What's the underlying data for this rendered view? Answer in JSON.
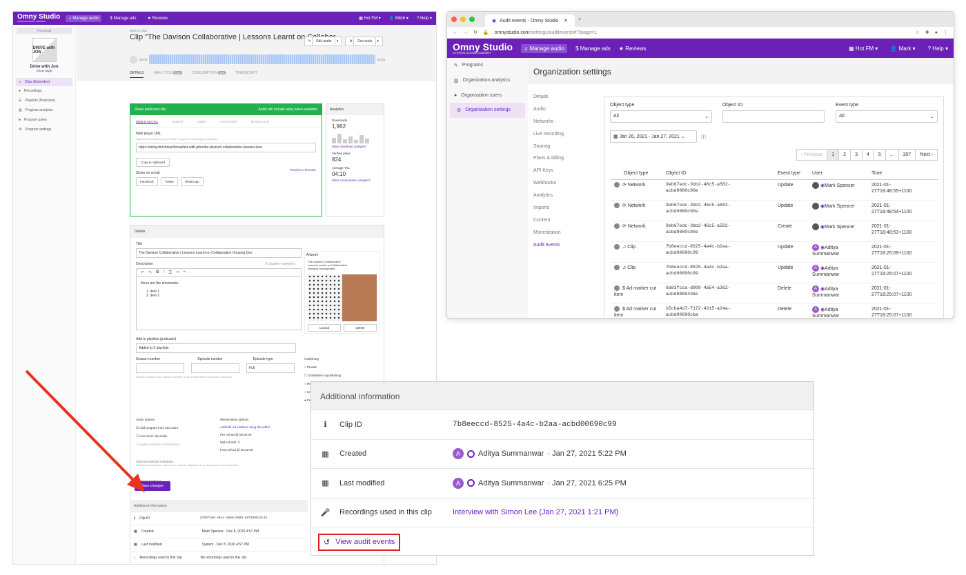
{
  "left_app": {
    "brand": "Omny Studio",
    "brand_sub": "A TRITON DIGITAL COMPANY",
    "nav": [
      "Manage audio",
      "Manage ads",
      "Reviews"
    ],
    "right_nav": [
      "Hot FM",
      "Mitch",
      "Help"
    ],
    "sidebar": {
      "program_label": "PROGRAM",
      "art_text": "DRIVE with JON",
      "program_name": "Drive with Jon",
      "show_page": "Show page",
      "items": [
        "Clips (Episodes)",
        "Recordings",
        "Playlists (Podcasts)",
        "Program analytics",
        "Program users",
        "Program settings"
      ]
    },
    "back": "Back to clips",
    "title": "Clip \"The Davison Collaborative | Lessons Learnt on Collabor...",
    "edit_audio": "Edit audio",
    "dev_tools": "Dev tools",
    "time_start": "00:00",
    "time_end": "42:36",
    "tabs": [
      "DETAILS",
      "ANALYTICS",
      "CONSUMPTION",
      "TRANSCRIPT"
    ],
    "tab_badges": [
      "2.8K",
      "824"
    ],
    "share": {
      "header": "Share published clip",
      "header_right": "Audio will include ad(s) when available",
      "subtabs": [
        "WEB & SOCIAL",
        "EMBED",
        "VIDEO",
        "CREATORS",
        "DOWNLOAD"
      ],
      "web_player_label": "Web player URL",
      "web_player_hint": "Optimized for desktop and mobile. Supports consumption analytics.",
      "url": "https://omny.fm/shows/breakfast-with-john/the-davison-collaborative-lessons-lear",
      "copy": "Copy to clipboard",
      "preview": "Preview in browser",
      "share_social": "Share on social",
      "socials": [
        "Facebook",
        "Twitter",
        "WhatsApp"
      ]
    },
    "analytics": {
      "header": "Analytics",
      "downloads_label": "Downloads",
      "downloads": "1,962",
      "more_download": "More download analytics",
      "verified_label": "Verified plays",
      "verified": "824",
      "tsl_label": "Average TSL",
      "tsl": "04:10",
      "more_consumption": "More consumption analytics"
    },
    "details": {
      "header": "Details",
      "title_label": "Title",
      "title_value": "The Davison Collaborative | Lessons Learnt on Collaborative Housing Dev",
      "description_label": "Description",
      "chapters": "0 chapter marker(s)",
      "desc_line": "these are the shownotes",
      "list": [
        "item 1",
        "item 2"
      ],
      "artwork_label": "Artwork",
      "artwork_text": "The Davison Collaborative: Lessons Learnt on Collaborative Housing Development",
      "upload": "Upload",
      "delete": "Delete",
      "playlists_label": "Add to playlists (podcasts)",
      "playlists_value": "Added to 2 playlists",
      "season": "Season number",
      "episode": "Episode number",
      "episode_type": "Episode type",
      "episode_type_value": "Full",
      "season_hint": "Setting a season and episode number is recommended for serialized podcasts",
      "publishing": "Publishing",
      "publish_opts": [
        "Private",
        "Scheduled unpublishing",
        "Restricted",
        "Unlisted",
        "Public"
      ],
      "audio_options": "Audio options",
      "audio_opts": [
        "Add program intro and outro",
        "Auto-level clip audio",
        "Apply loudness normalization"
      ],
      "monetization": "Monetization options",
      "monetization_link": "Add/edit ad markers using the editor",
      "ads": [
        "Pre-roll ad @ 00:00:00",
        "Mid-roll ads: 2",
        "Post-roll ad @ 00:42:36"
      ],
      "optional_meta": "Optional episode metadata",
      "optional_hint": "Additional information about your episode displayed in podcast apps and directories",
      "advanced": "Advanced settings",
      "save": "Save changes"
    },
    "addinfo": {
      "header": "Additional information",
      "rows": [
        {
          "k": "Clip ID",
          "v": "d759f49e-46a4-4a9d-b90d-abf200813c44"
        },
        {
          "k": "Created",
          "v": "Mark Spencer · Dec 8, 2020 4:57 PM"
        },
        {
          "k": "Last modified",
          "v": "System · Dec 8, 2020 4:57 PM"
        },
        {
          "k": "Recordings used in this clip",
          "v": "No recordings used in this clip"
        }
      ]
    }
  },
  "browser": {
    "tab_title": "Audit events - Omny Studio",
    "url_host": "omnystudio.com",
    "url_path": "/settings/auditevents#!?page=1",
    "brand": "Omny Studio",
    "brand_sub": "A TRITON DIGITAL COMPANY",
    "nav": [
      "Manage audio",
      "Manage ads",
      "Reviews"
    ],
    "right_nav": [
      "Hot FM",
      "Mark",
      "Help"
    ],
    "sidebar": [
      "Programs",
      "Organization analytics",
      "Organization users",
      "Organization settings"
    ],
    "page_title": "Organization settings",
    "settings_nav": [
      "Details",
      "Audio",
      "Networks",
      "Live recording",
      "Sharing",
      "Plans & billing",
      "API Keys",
      "Webhooks",
      "Analytics",
      "Imports",
      "Content",
      "Monetization",
      "Audit events"
    ],
    "filters": {
      "object_type_label": "Object type",
      "object_type_value": "All",
      "object_id_label": "Object ID",
      "event_type_label": "Event type",
      "event_type_value": "All",
      "date_range": "Jan 26, 2021 - Jan 27, 2021"
    },
    "pagination": [
      "‹ Previous",
      "1",
      "2",
      "3",
      "4",
      "5",
      "...",
      "307",
      "Next ›"
    ],
    "columns": [
      "Object type",
      "Object ID",
      "Event type",
      "User",
      "Time"
    ],
    "rows": [
      {
        "type": "Network",
        "id1": "9eb67edc-3bb2-46c5-a582-",
        "id2": "acbd0080c90e",
        "event": "Update",
        "user": "Mark Spencer",
        "user_kind": "m",
        "t1": "2021-01-",
        "t2": "27T18:48:55+1100"
      },
      {
        "type": "Network",
        "id1": "9eb67edc-3bb2-46c5-a582-",
        "id2": "acbd0080c90e",
        "event": "Update",
        "user": "Mark Spencer",
        "user_kind": "m",
        "t1": "2021-01-",
        "t2": "27T18:48:54+1100"
      },
      {
        "type": "Network",
        "id1": "9eb67edc-3bb2-46c5-a582-",
        "id2": "acbd0080c90e",
        "event": "Create",
        "user": "Mark Spencer",
        "user_kind": "m",
        "t1": "2021-01-",
        "t2": "27T18:48:53+1100"
      },
      {
        "type": "Clip",
        "id1": "7b8eeccd-8525-4a4c-b2aa-",
        "id2": "acbd00690c99",
        "event": "Update",
        "user": "Aditya Summanwar",
        "user_kind": "a",
        "t1": "2021-01-",
        "t2": "27T18:25:09+1100"
      },
      {
        "type": "Clip",
        "id1": "7b8eeccd-8525-4a4c-b2aa-",
        "id2": "acbd00690c99",
        "event": "Update",
        "user": "Aditya Summanwar",
        "user_kind": "a",
        "t1": "2021-01-",
        "t2": "27T18:25:07+1100"
      },
      {
        "type": "Ad marker cut item",
        "id1": "6a93fcca-d909-4a54-a362-",
        "id2": "acbd0069436e",
        "event": "Delete",
        "user": "Aditya Summanwar",
        "user_kind": "a",
        "t1": "2021-01-",
        "t2": "27T18:25:07+1100"
      },
      {
        "type": "Ad marker cut item",
        "id1": "b5cba4d7-7172-4315-a24a-",
        "id2": "acbd00690cba",
        "event": "Delete",
        "user": "Aditya Summanwar",
        "user_kind": "a",
        "t1": "2021-01-",
        "t2": "27T18:25:07+1100"
      }
    ]
  },
  "zoom": {
    "header": "Additional information",
    "clip_id_label": "Clip ID",
    "clip_id": "7b8eeccd-8525-4a4c-b2aa-acbd00690c99",
    "created_label": "Created",
    "created_user": "Aditya Summanwar",
    "created_time": "· Jan 27, 2021 5:22 PM",
    "modified_label": "Last modified",
    "modified_user": "Aditya Summanwar",
    "modified_time": "· Jan 27, 2021 6:25 PM",
    "recordings_label": "Recordings used in this clip",
    "recording_link": "Interview with Simon Lee (Jan 27, 2021 1:21 PM)",
    "audit_link": "View audit events",
    "avatar_letter": "A"
  },
  "colors": {
    "brand": "#6b21b8",
    "green": "#22b14c",
    "arrow": "#e8321e"
  }
}
